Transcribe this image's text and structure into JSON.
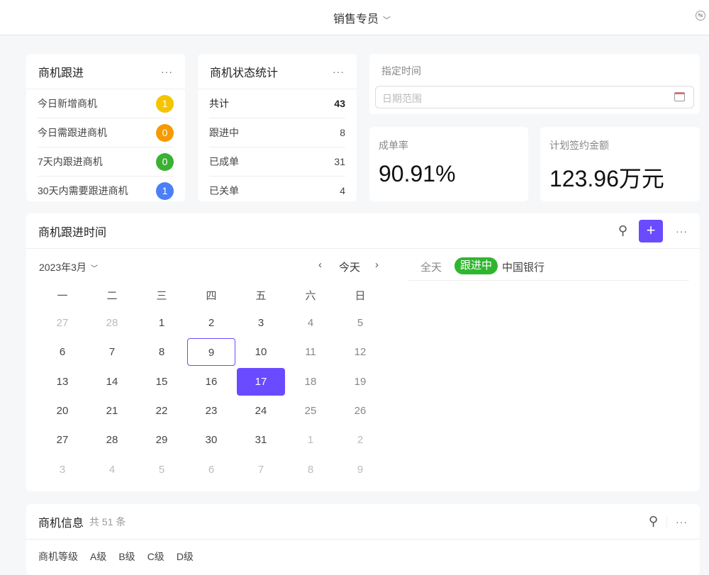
{
  "header": {
    "role": "销售专员",
    "role_icon": "chevron-down-icon",
    "right_icon": "switch-icon"
  },
  "followup": {
    "title": "商机跟进",
    "items": [
      {
        "label": "今日新增商机",
        "count": "1",
        "color": "#f5c400"
      },
      {
        "label": "今日需跟进商机",
        "count": "0",
        "color": "#f59a00"
      },
      {
        "label": "7天内跟进商机",
        "count": "0",
        "color": "#3bb033"
      },
      {
        "label": "30天内需要跟进商机",
        "count": "1",
        "color": "#4a7ff7"
      }
    ]
  },
  "status": {
    "title": "商机状态统计",
    "items": [
      {
        "label": "共计",
        "value": "43"
      },
      {
        "label": "跟进中",
        "value": "8"
      },
      {
        "label": "已成单",
        "value": "31"
      },
      {
        "label": "已关单",
        "value": "4"
      }
    ]
  },
  "time_filter": {
    "label": "指定时间",
    "placeholder": "日期范围"
  },
  "stats": {
    "rate_label": "成单率",
    "rate_value": "90.91%",
    "amount_label": "计划签约金额",
    "amount_value": "123.96万元"
  },
  "timeline": {
    "title": "商机跟进时间",
    "month": "2023年3月",
    "today": "今天",
    "accent": "#6a4bff",
    "weekdays": [
      "一",
      "二",
      "三",
      "四",
      "五",
      "六",
      "日"
    ],
    "days": [
      [
        "27",
        "28",
        "1",
        "2",
        "3",
        "4",
        "5"
      ],
      [
        "6",
        "7",
        "8",
        "9",
        "10",
        "11",
        "12"
      ],
      [
        "13",
        "14",
        "15",
        "16",
        "17",
        "18",
        "19"
      ],
      [
        "20",
        "21",
        "22",
        "23",
        "24",
        "25",
        "26"
      ],
      [
        "27",
        "28",
        "29",
        "30",
        "31",
        "1",
        "2"
      ],
      [
        "3",
        "4",
        "5",
        "6",
        "7",
        "8",
        "9"
      ]
    ],
    "today_date": "9",
    "selected_date": "17",
    "event": {
      "time": "全天",
      "tag": "跟进中",
      "tag_color": "#2fb62f",
      "name": "中国银行"
    }
  },
  "info": {
    "title": "商机信息",
    "count": "共 51 条",
    "filter_label": "商机等级",
    "levels": [
      "A级",
      "B级",
      "C级",
      "D级"
    ]
  }
}
